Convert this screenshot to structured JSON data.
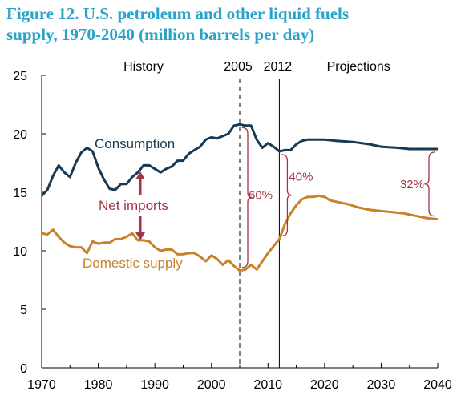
{
  "title_line1": "Figure 12. U.S. petroleum and other liquid fuels",
  "title_line2": "supply, 1970-2040 (million barrels per day)",
  "colors": {
    "title": "#2aa3c9",
    "consumption": "#173a52",
    "domestic": "#c8822c",
    "net_imports": "#a63446"
  },
  "chart_data": {
    "type": "line",
    "xlim": [
      1970,
      2040
    ],
    "ylim": [
      0,
      25
    ],
    "x_ticks": [
      "1970",
      "1980",
      "1990",
      "2000",
      "2010",
      "2020",
      "2030",
      "2040"
    ],
    "y_ticks": [
      "0",
      "5",
      "10",
      "15",
      "20",
      "25"
    ],
    "period_labels": {
      "history": "History",
      "projections": "Projections"
    },
    "year_markers": [
      {
        "label": "2005",
        "x": 2005,
        "style": "dashed"
      },
      {
        "label": "2012",
        "x": 2012,
        "style": "solid"
      }
    ],
    "series": [
      {
        "name": "Consumption",
        "points": [
          [
            1970,
            14.7
          ],
          [
            1971,
            15.2
          ],
          [
            1972,
            16.4
          ],
          [
            1973,
            17.3
          ],
          [
            1974,
            16.7
          ],
          [
            1975,
            16.3
          ],
          [
            1976,
            17.5
          ],
          [
            1977,
            18.4
          ],
          [
            1978,
            18.8
          ],
          [
            1979,
            18.5
          ],
          [
            1980,
            17.1
          ],
          [
            1981,
            16.1
          ],
          [
            1982,
            15.3
          ],
          [
            1983,
            15.2
          ],
          [
            1984,
            15.7
          ],
          [
            1985,
            15.7
          ],
          [
            1986,
            16.3
          ],
          [
            1987,
            16.7
          ],
          [
            1988,
            17.3
          ],
          [
            1989,
            17.3
          ],
          [
            1990,
            17.0
          ],
          [
            1991,
            16.7
          ],
          [
            1992,
            17.0
          ],
          [
            1993,
            17.2
          ],
          [
            1994,
            17.7
          ],
          [
            1995,
            17.7
          ],
          [
            1996,
            18.3
          ],
          [
            1997,
            18.6
          ],
          [
            1998,
            18.9
          ],
          [
            1999,
            19.5
          ],
          [
            2000,
            19.7
          ],
          [
            2001,
            19.6
          ],
          [
            2002,
            19.8
          ],
          [
            2003,
            20.0
          ],
          [
            2004,
            20.7
          ],
          [
            2005,
            20.8
          ],
          [
            2006,
            20.7
          ],
          [
            2007,
            20.7
          ],
          [
            2008,
            19.5
          ],
          [
            2009,
            18.8
          ],
          [
            2010,
            19.2
          ],
          [
            2011,
            18.9
          ],
          [
            2012,
            18.5
          ],
          [
            2013,
            18.6
          ],
          [
            2014,
            18.6
          ],
          [
            2015,
            19.1
          ],
          [
            2016,
            19.4
          ],
          [
            2017,
            19.5
          ],
          [
            2018,
            19.5
          ],
          [
            2019,
            19.5
          ],
          [
            2020,
            19.5
          ],
          [
            2022,
            19.4
          ],
          [
            2025,
            19.3
          ],
          [
            2028,
            19.1
          ],
          [
            2030,
            18.9
          ],
          [
            2033,
            18.8
          ],
          [
            2035,
            18.7
          ],
          [
            2040,
            18.7
          ]
        ]
      },
      {
        "name": "Domestic supply",
        "points": [
          [
            1970,
            11.5
          ],
          [
            1971,
            11.4
          ],
          [
            1972,
            11.8
          ],
          [
            1973,
            11.2
          ],
          [
            1974,
            10.7
          ],
          [
            1975,
            10.4
          ],
          [
            1976,
            10.3
          ],
          [
            1977,
            10.3
          ],
          [
            1978,
            9.8
          ],
          [
            1979,
            10.8
          ],
          [
            1980,
            10.6
          ],
          [
            1981,
            10.7
          ],
          [
            1982,
            10.7
          ],
          [
            1983,
            11.0
          ],
          [
            1984,
            11.0
          ],
          [
            1985,
            11.2
          ],
          [
            1986,
            11.5
          ],
          [
            1987,
            10.9
          ],
          [
            1988,
            10.9
          ],
          [
            1989,
            10.8
          ],
          [
            1990,
            10.3
          ],
          [
            1991,
            10.0
          ],
          [
            1992,
            10.1
          ],
          [
            1993,
            10.1
          ],
          [
            1994,
            9.7
          ],
          [
            1995,
            9.7
          ],
          [
            1996,
            9.8
          ],
          [
            1997,
            9.8
          ],
          [
            1998,
            9.5
          ],
          [
            1999,
            9.1
          ],
          [
            2000,
            9.6
          ],
          [
            2001,
            9.3
          ],
          [
            2002,
            8.8
          ],
          [
            2003,
            9.2
          ],
          [
            2004,
            8.7
          ],
          [
            2005,
            8.3
          ],
          [
            2006,
            8.4
          ],
          [
            2007,
            8.8
          ],
          [
            2008,
            8.4
          ],
          [
            2009,
            9.1
          ],
          [
            2010,
            9.8
          ],
          [
            2011,
            10.4
          ],
          [
            2012,
            11.0
          ],
          [
            2013,
            12.3
          ],
          [
            2014,
            13.2
          ],
          [
            2015,
            13.9
          ],
          [
            2016,
            14.4
          ],
          [
            2017,
            14.6
          ],
          [
            2018,
            14.6
          ],
          [
            2019,
            14.7
          ],
          [
            2020,
            14.6
          ],
          [
            2021,
            14.3
          ],
          [
            2022,
            14.2
          ],
          [
            2024,
            14.0
          ],
          [
            2026,
            13.7
          ],
          [
            2028,
            13.5
          ],
          [
            2030,
            13.4
          ],
          [
            2032,
            13.3
          ],
          [
            2034,
            13.2
          ],
          [
            2036,
            13.0
          ],
          [
            2038,
            12.8
          ],
          [
            2040,
            12.7
          ]
        ]
      }
    ],
    "annotations": {
      "consumption_label": "Consumption",
      "net_imports_label": "Net imports",
      "domestic_label": "Domestic supply",
      "gaps": [
        {
          "label": "60%",
          "x": 2005,
          "low": 8.3,
          "high": 20.8
        },
        {
          "label": "40%",
          "x": 2012,
          "low": 11.0,
          "high": 18.5
        },
        {
          "label": "32%",
          "x": 2040,
          "low": 12.7,
          "high": 18.7
        }
      ]
    }
  }
}
